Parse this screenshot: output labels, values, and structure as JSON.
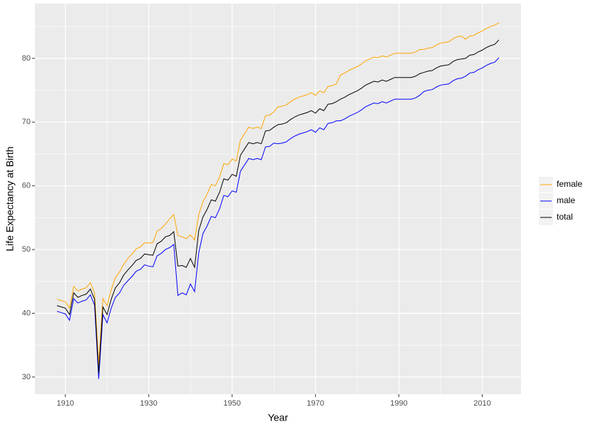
{
  "chart_data": {
    "type": "line",
    "x_label": "Year",
    "y_label": "Life Expectancy at Birth",
    "x": [
      1908,
      1909,
      1910,
      1911,
      1912,
      1913,
      1914,
      1915,
      1916,
      1917,
      1918,
      1919,
      1920,
      1921,
      1922,
      1923,
      1924,
      1925,
      1926,
      1927,
      1928,
      1929,
      1930,
      1931,
      1932,
      1933,
      1934,
      1935,
      1936,
      1937,
      1938,
      1939,
      1940,
      1941,
      1942,
      1943,
      1944,
      1945,
      1946,
      1947,
      1948,
      1949,
      1950,
      1951,
      1952,
      1953,
      1954,
      1955,
      1956,
      1957,
      1958,
      1959,
      1960,
      1961,
      1962,
      1963,
      1964,
      1965,
      1966,
      1967,
      1968,
      1969,
      1970,
      1971,
      1972,
      1973,
      1974,
      1975,
      1976,
      1977,
      1978,
      1979,
      1980,
      1981,
      1982,
      1983,
      1984,
      1985,
      1986,
      1987,
      1988,
      1989,
      1990,
      1991,
      1992,
      1993,
      1994,
      1995,
      1996,
      1997,
      1998,
      1999,
      2000,
      2001,
      2002,
      2003,
      2004,
      2005,
      2006,
      2007,
      2008,
      2009,
      2010,
      2011,
      2012,
      2013,
      2014
    ],
    "series": [
      {
        "name": "female",
        "color": "#FFA500",
        "values": [
          42.2,
          42.0,
          41.8,
          40.8,
          44.2,
          43.5,
          43.8,
          44.0,
          44.8,
          43.2,
          32.0,
          42.3,
          41.2,
          43.7,
          45.6,
          46.5,
          47.7,
          48.6,
          49.3,
          50.1,
          50.4,
          51.1,
          51.0,
          51.1,
          52.9,
          53.3,
          54.0,
          54.8,
          55.5,
          52.2,
          52.0,
          51.7,
          52.3,
          51.5,
          55.5,
          57.5,
          58.7,
          60.2,
          60.0,
          61.4,
          63.5,
          63.3,
          64.2,
          63.9,
          67.2,
          68.2,
          69.2,
          69.0,
          69.2,
          69.0,
          71.0,
          71.1,
          71.6,
          72.4,
          72.5,
          72.7,
          73.2,
          73.6,
          73.9,
          74.1,
          74.3,
          74.6,
          74.2,
          74.9,
          74.6,
          75.6,
          75.7,
          76.0,
          77.4,
          77.7,
          78.1,
          78.4,
          78.7,
          79.1,
          79.6,
          79.9,
          80.2,
          80.1,
          80.4,
          80.2,
          80.5,
          80.8,
          80.8,
          80.8,
          80.8,
          80.8,
          81.0,
          81.4,
          81.4,
          81.6,
          81.7,
          82.1,
          82.4,
          82.5,
          82.6,
          83.1,
          83.4,
          83.5,
          83.0,
          83.5,
          83.6,
          84.0,
          84.3,
          84.7,
          85.0,
          85.2,
          85.6
        ]
      },
      {
        "name": "male",
        "color": "#0000FF",
        "values": [
          40.3,
          40.1,
          39.9,
          38.9,
          42.3,
          41.6,
          41.9,
          42.1,
          42.9,
          41.3,
          29.7,
          39.8,
          38.5,
          40.8,
          42.5,
          43.2,
          44.4,
          45.1,
          45.8,
          46.6,
          46.9,
          47.6,
          47.4,
          47.3,
          49.0,
          49.4,
          50.0,
          50.3,
          50.8,
          42.8,
          43.2,
          42.9,
          44.6,
          43.4,
          49.5,
          52.5,
          53.7,
          55.2,
          55.0,
          56.4,
          58.5,
          58.3,
          59.2,
          59.0,
          62.3,
          63.3,
          64.3,
          64.1,
          64.3,
          64.1,
          66.1,
          66.2,
          66.7,
          66.6,
          66.7,
          66.9,
          67.4,
          67.8,
          68.1,
          68.3,
          68.5,
          68.8,
          68.4,
          69.1,
          68.8,
          69.8,
          69.9,
          70.2,
          70.2,
          70.5,
          70.9,
          71.2,
          71.5,
          71.9,
          72.4,
          72.7,
          73.0,
          72.9,
          73.2,
          73.0,
          73.3,
          73.6,
          73.6,
          73.6,
          73.6,
          73.6,
          73.8,
          74.2,
          74.8,
          75.0,
          75.1,
          75.5,
          75.8,
          75.9,
          76.0,
          76.5,
          76.8,
          76.9,
          77.2,
          77.7,
          77.8,
          78.2,
          78.5,
          78.9,
          79.2,
          79.4,
          80.1
        ]
      },
      {
        "name": "total",
        "color": "#000000",
        "values": [
          41.2,
          41.0,
          40.8,
          39.8,
          43.2,
          42.5,
          42.8,
          43.0,
          43.8,
          42.2,
          30.6,
          41.0,
          39.8,
          42.2,
          44.0,
          44.8,
          46.0,
          46.8,
          47.5,
          48.3,
          48.6,
          49.3,
          49.2,
          49.1,
          50.9,
          51.3,
          52.0,
          52.2,
          52.8,
          47.4,
          47.5,
          47.2,
          48.6,
          47.2,
          53.0,
          55.1,
          56.3,
          57.8,
          57.6,
          59.0,
          61.1,
          60.9,
          61.8,
          61.5,
          64.8,
          65.8,
          66.8,
          66.6,
          66.8,
          66.6,
          68.6,
          68.7,
          69.2,
          69.6,
          69.7,
          69.9,
          70.4,
          70.8,
          71.1,
          71.3,
          71.5,
          71.8,
          71.4,
          72.1,
          71.8,
          72.8,
          72.9,
          73.2,
          73.6,
          73.9,
          74.3,
          74.6,
          74.9,
          75.3,
          75.8,
          76.1,
          76.4,
          76.3,
          76.6,
          76.4,
          76.7,
          77.0,
          77.0,
          77.0,
          77.0,
          77.0,
          77.2,
          77.6,
          77.8,
          78.0,
          78.1,
          78.5,
          78.8,
          78.9,
          79.0,
          79.5,
          79.8,
          79.9,
          80.0,
          80.5,
          80.6,
          81.0,
          81.3,
          81.7,
          82.0,
          82.2,
          82.9
        ]
      }
    ],
    "xlim": [
      1902.7,
      2019.3
    ],
    "xticks": [
      1910,
      1930,
      1950,
      1970,
      1990,
      2010
    ],
    "x_minor_ticks": [
      1920,
      1940,
      1960,
      1980,
      2000
    ],
    "ylim": [
      27.3,
      88.6
    ],
    "yticks": [
      30,
      40,
      50,
      60,
      70,
      80
    ],
    "y_minor_ticks": [
      35,
      45,
      55,
      65,
      75,
      85
    ],
    "grid": true,
    "legend": "right"
  }
}
